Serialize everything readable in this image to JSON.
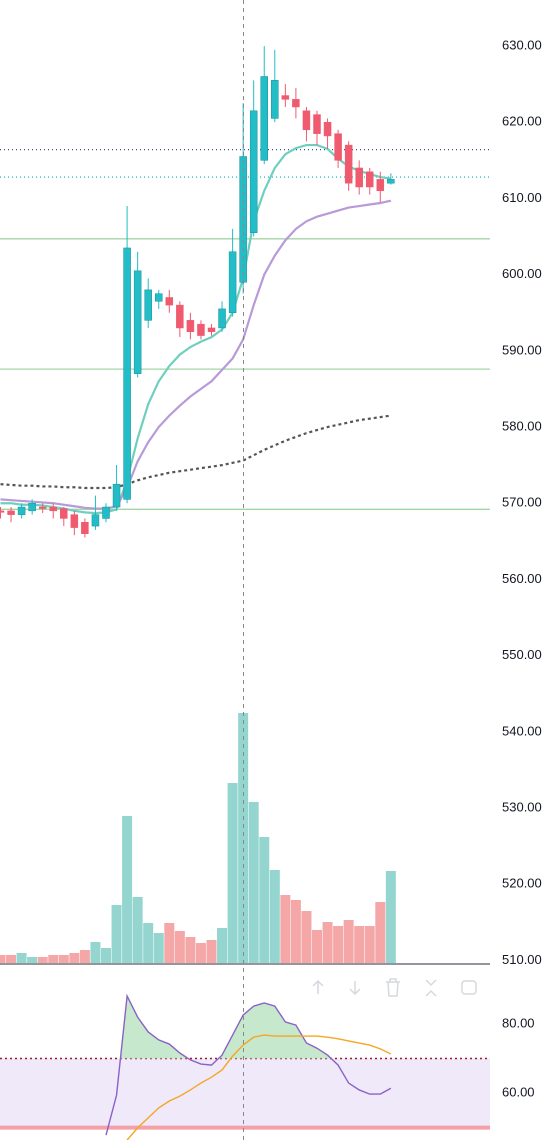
{
  "chart_data": [
    {
      "type": "candlestick",
      "ylim": [
        509.66,
        636.04
      ],
      "yticks": [
        {
          "value": 630,
          "label": "630.00"
        },
        {
          "value": 620,
          "label": "620.00"
        },
        {
          "value": 610,
          "label": "610.00"
        },
        {
          "value": 600,
          "label": "600.00"
        },
        {
          "value": 590,
          "label": "590.00"
        },
        {
          "value": 580,
          "label": "580.00"
        },
        {
          "value": 570,
          "label": "570.00"
        },
        {
          "value": 560,
          "label": "560.00"
        },
        {
          "value": 550,
          "label": "550.00"
        },
        {
          "value": 540,
          "label": "540.00"
        },
        {
          "value": 530,
          "label": "530.00"
        },
        {
          "value": 520,
          "label": "520.00"
        },
        {
          "value": 510,
          "label": "510.00"
        }
      ],
      "up_color": "#22bdc6",
      "down_color": "#ef5a6f",
      "open": [
        569,
        569,
        568.5,
        569,
        569.5,
        569.5,
        569.3,
        568.5,
        567.5,
        567,
        568,
        569.5,
        570.5,
        587,
        594,
        596.5,
        597,
        596,
        594,
        593.5,
        593,
        593,
        595,
        599,
        605.5,
        615,
        620.5,
        623.5,
        623,
        621.5,
        621,
        620,
        618.5,
        617,
        614,
        613.5,
        612.5,
        612
      ],
      "high": [
        569.5,
        569.5,
        570,
        570.5,
        570,
        570,
        569.5,
        569,
        568,
        571,
        570,
        575,
        609,
        603,
        599.5,
        598,
        598,
        596.5,
        595,
        594,
        593.5,
        596.5,
        606,
        622.5,
        625.5,
        630,
        629.5,
        625,
        624.5,
        622,
        621.5,
        620.5,
        619,
        617.5,
        615,
        614,
        613.5,
        613.3
      ],
      "low": [
        568,
        567.5,
        568,
        568.5,
        568.7,
        568,
        567,
        565.8,
        565.5,
        566.5,
        567.5,
        569,
        570,
        586.5,
        593,
        595.5,
        595,
        591.8,
        591.5,
        591.5,
        592,
        592.5,
        594.5,
        597.5,
        605,
        614.5,
        620,
        622,
        620.5,
        617.5,
        617,
        616.5,
        614,
        611,
        610.5,
        610.5,
        609.5,
        611.8
      ],
      "close": [
        568.8,
        568.5,
        569.5,
        570,
        569.3,
        569,
        568,
        566.8,
        566,
        568.5,
        569.5,
        572.5,
        603.5,
        600.5,
        598,
        597.5,
        596,
        593,
        592.5,
        592,
        592.5,
        595.5,
        603,
        615.5,
        621.5,
        626,
        625.5,
        623,
        622,
        619,
        618.5,
        618.2,
        615,
        612,
        611.5,
        611.5,
        611,
        612.5
      ],
      "volume": {
        "ylim": [
          0,
          963
        ],
        "up_color": "#94d5cf",
        "down_color": "#f5a7a7",
        "values": [
          8,
          8,
          10,
          6,
          6,
          8,
          8,
          10,
          13,
          21,
          15,
          58,
          147,
          66,
          40,
          30,
          40,
          32,
          26,
          20,
          23,
          35,
          180,
          250,
          161,
          126,
          93,
          68,
          63,
          52,
          33,
          41,
          37,
          43,
          37,
          37,
          61,
          92
        ]
      },
      "series": [
        {
          "color": "#6fcfbf",
          "dash": "",
          "values": [
            570,
            570,
            569.8,
            569.8,
            569.7,
            569.5,
            569.3,
            569,
            568.8,
            568.7,
            568.8,
            569.2,
            573,
            578.5,
            583,
            586,
            588,
            589.5,
            590.5,
            591.2,
            591.8,
            592.8,
            595,
            599.5,
            607,
            611,
            614,
            615.8,
            616.6,
            617,
            617,
            616.5,
            615.2,
            614.2,
            613.6,
            613.2,
            612.8,
            612.6
          ]
        },
        {
          "color": "#b89ad8",
          "dash": "",
          "values": [
            570.5,
            570.4,
            570.3,
            570.2,
            570.1,
            570,
            569.8,
            569.6,
            569.4,
            569.3,
            569.3,
            569.6,
            572,
            575.5,
            578,
            580,
            581.5,
            582.8,
            584,
            585,
            586,
            587.5,
            589,
            591.5,
            596,
            600,
            602.5,
            604.5,
            606,
            607,
            607.6,
            608,
            608.4,
            608.8,
            609,
            609.2,
            609.4,
            609.7
          ]
        },
        {
          "color": "#555555",
          "dash": "3 3",
          "values": [
            572.5,
            572.4,
            572.3,
            572.3,
            572.2,
            572.2,
            572.1,
            572.1,
            572,
            572,
            572,
            572.1,
            572.5,
            573,
            573.4,
            573.7,
            574,
            574.2,
            574.4,
            574.6,
            574.8,
            575,
            575.3,
            575.6,
            576.3,
            577,
            577.6,
            578.2,
            578.7,
            579.2,
            579.6,
            580,
            580.3,
            580.6,
            580.9,
            581.1,
            581.3,
            581.5
          ]
        }
      ],
      "hlines": [
        {
          "value": 604.7,
          "color": "#a5d6a7",
          "dash": ""
        },
        {
          "value": 587.6,
          "color": "#a5d6a7",
          "dash": ""
        },
        {
          "value": 569.2,
          "color": "#a5d6a7",
          "dash": ""
        },
        {
          "value": 616.4,
          "color": "#3b4a8c",
          "dash": "1 3"
        },
        {
          "value": 612.8,
          "color": "#22bdc6",
          "dash": "1 3"
        }
      ]
    },
    {
      "type": "line",
      "ylim": [
        46.4,
        97.1
      ],
      "yticks": [
        {
          "value": 80,
          "label": "80.00"
        },
        {
          "value": 60,
          "label": "60.00"
        }
      ],
      "band": [
        50,
        70
      ],
      "band_color": "#efe9f9",
      "upper_color": "#9c1a2e",
      "lower_color": "#f4a0a8",
      "fill_color": "#b8e2c0",
      "series": [
        {
          "color": "#8a62c4",
          "values": [
            null,
            null,
            null,
            null,
            null,
            null,
            null,
            null,
            null,
            null,
            47.8,
            59.4,
            88.1,
            82,
            77.7,
            75.4,
            74.2,
            71.6,
            69.6,
            68.4,
            68.1,
            71,
            76.8,
            82.6,
            85.2,
            86.1,
            85.2,
            80.6,
            79.7,
            74.5,
            73,
            71,
            68.1,
            62.9,
            60.9,
            59.7,
            59.7,
            61.4
          ]
        },
        {
          "color": "#f5a623",
          "values": [
            null,
            null,
            null,
            null,
            null,
            null,
            null,
            null,
            null,
            null,
            null,
            null,
            46.4,
            49.9,
            52.8,
            55.7,
            57.7,
            59.1,
            60.9,
            62.9,
            64.6,
            66.7,
            70.7,
            73.9,
            76.2,
            76.8,
            76.5,
            76.5,
            76.5,
            76.5,
            76.5,
            76.2,
            75.7,
            75.1,
            74.5,
            73.9,
            72.8,
            71.3
          ]
        }
      ]
    }
  ]
}
